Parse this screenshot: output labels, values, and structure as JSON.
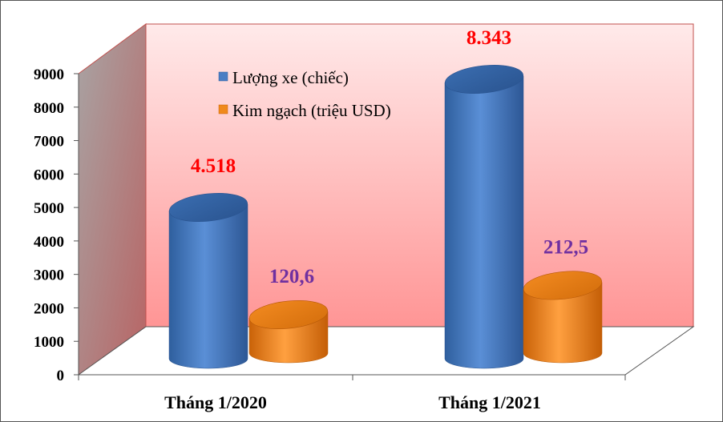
{
  "chart_data": {
    "type": "bar",
    "style": "3d-cylinder",
    "categories": [
      "Tháng 1/2020",
      "Tháng 1/2021"
    ],
    "series": [
      {
        "name": "Lượng xe (chiếc)",
        "values": [
          4518,
          8343
        ],
        "value_labels": [
          "4.518",
          "8.343"
        ],
        "color": "#4a7ec4",
        "label_color": "#ff0000"
      },
      {
        "name": "Kim ngạch (triệu USD)",
        "values": [
          120.6,
          212.5
        ],
        "value_labels": [
          "120,6",
          "212,5"
        ],
        "color": "#f08a1c",
        "label_color": "#7030a0"
      }
    ],
    "y_ticks": [
      "0",
      "1000",
      "2000",
      "3000",
      "4000",
      "5000",
      "6000",
      "7000",
      "8000",
      "9000"
    ],
    "ylim": [
      0,
      9000
    ],
    "legend_position": "top-left",
    "background_color": "#ff9a9a",
    "grid": false
  }
}
